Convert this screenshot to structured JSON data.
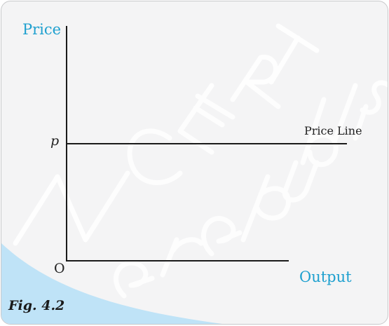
{
  "figure": {
    "caption": "Fig. 4.2",
    "watermark": "NCERT not to be republished",
    "colors": {
      "background": "#f4f4f5",
      "accent": "#1ea0cf",
      "corner_wedge": "#bfe3f7",
      "line": "#1a1a1a"
    }
  },
  "chart_data": {
    "type": "line",
    "ylabel": "Price",
    "xlabel": "Output",
    "origin_label": "O",
    "y_tick_labels": [
      "p"
    ],
    "series": [
      {
        "name": "Price Line",
        "x": [
          0,
          1
        ],
        "y": [
          "p",
          "p"
        ]
      }
    ],
    "grid": false,
    "legend": "none"
  }
}
